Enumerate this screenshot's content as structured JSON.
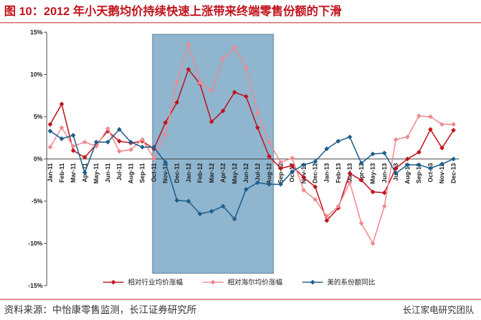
{
  "chart_data": {
    "type": "line",
    "title": "图 10：2012 年小天鹅均价持续快速上涨带来终端零售份额的下滑",
    "source": "资料来源：中怡康零售监测，长江证券研究所",
    "watermark": "长江家电研究团队",
    "categories": [
      "Jan-11",
      "Feb-11",
      "Mar-11",
      "Apr-11",
      "May-11",
      "Jun-11",
      "Jul-11",
      "Aug-11",
      "Sep-11",
      "Oct-11",
      "Nov-11",
      "Dec-11",
      "Jan-12",
      "Feb-12",
      "Mar-12",
      "Apr-12",
      "May-12",
      "Jun-12",
      "Jul-12",
      "Aug-12",
      "Sep-12",
      "Oct-12",
      "Nov-12",
      "Dec-12",
      "Jan-13",
      "Feb-13",
      "Mar-13",
      "Apr-13",
      "May-13",
      "Jun-13",
      "Jul-13",
      "Aug-13",
      "Sep-13",
      "Oct-13",
      "Nov-13",
      "Dec-13"
    ],
    "series": [
      {
        "name": "相对行业均价涨幅",
        "color": "#c0141e",
        "values": [
          4.1,
          6.5,
          1.0,
          0.2,
          1.7,
          3.3,
          2.1,
          1.9,
          2.1,
          1.2,
          4.3,
          6.7,
          10.6,
          8.9,
          4.4,
          5.7,
          7.9,
          7.4,
          3.7,
          0.3,
          -1.1,
          -0.8,
          -2.2,
          -3.3,
          -7.3,
          -5.8,
          -1.7,
          -2.5,
          -3.9,
          -4.0,
          -1.1,
          0.0,
          0.8,
          3.5,
          1.3,
          3.4
        ]
      },
      {
        "name": "相对海尔均价涨幅",
        "color": "#ef8a90",
        "values": [
          1.4,
          3.7,
          1.5,
          2.0,
          1.5,
          3.6,
          0.9,
          1.1,
          2.3,
          0.1,
          2.9,
          9.1,
          13.6,
          9.0,
          8.1,
          11.9,
          13.2,
          10.8,
          5.5,
          2.0,
          -0.4,
          0.1,
          -3.7,
          -4.8,
          -6.8,
          -5.6,
          -2.8,
          -7.6,
          -10.0,
          -5.6,
          2.3,
          2.6,
          5.1,
          5.0,
          4.1,
          4.1
        ]
      },
      {
        "name": "美的系份额同比",
        "color": "#1f5f8b",
        "values": [
          3.3,
          2.4,
          2.8,
          -1.6,
          2.0,
          2.0,
          3.5,
          2.0,
          1.4,
          1.4,
          -0.4,
          -4.9,
          -5.0,
          -6.5,
          -6.2,
          -5.6,
          -7.1,
          -3.6,
          -2.8,
          -3.0,
          -3.0,
          -1.5,
          -0.7,
          -0.3,
          1.2,
          2.1,
          2.6,
          -0.5,
          0.6,
          0.7,
          -1.7,
          -0.7,
          -0.7,
          -1.1,
          -0.6,
          0.0
        ]
      }
    ],
    "ylim": [
      -15,
      15
    ],
    "yticks": [
      {
        "value": -15,
        "label": "-15%"
      },
      {
        "value": -10,
        "label": "-10%"
      },
      {
        "value": -5,
        "label": "-5%"
      },
      {
        "value": 0,
        "label": "0%"
      },
      {
        "value": 5,
        "label": "5%"
      },
      {
        "value": 10,
        "label": "10%"
      },
      {
        "value": 15,
        "label": "15%"
      }
    ],
    "legend": "bottom"
  }
}
